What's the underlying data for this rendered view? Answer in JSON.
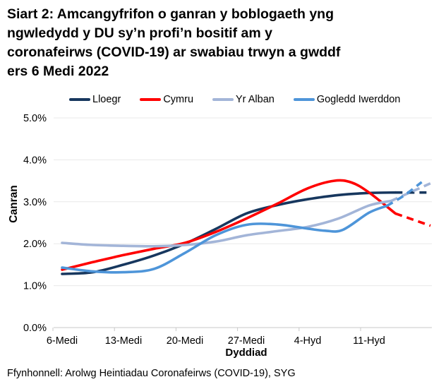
{
  "title_lines": [
    "Siart 2: Amcangyfrifon o ganran y boblogaeth yng",
    "ngwledydd y DU sy’n profi’n bositif am y",
    "coronafeirws (COVID-19) ar swabiau trwyn a gwddf",
    "ers 6 Medi 2022"
  ],
  "footer": {
    "source": "Ffynhonnell: Arolwg Heintiadau Coronafeirws (COVID-19), SYG"
  },
  "chart_data": {
    "type": "line",
    "xlabel": "Dyddiad",
    "ylabel": "Canran",
    "x_tick_labels": [
      "6-Medi",
      "13-Medi",
      "20-Medi",
      "27-Medi",
      "4-Hyd",
      "11-Hyd"
    ],
    "x_tick_days": [
      0,
      7,
      14,
      21,
      28,
      35
    ],
    "y_tick_labels": [
      "0.0%",
      "1.0%",
      "2.0%",
      "3.0%",
      "4.0%",
      "5.0%"
    ],
    "ylim": [
      0,
      5
    ],
    "grid": "horizontal-only",
    "legend_position": "top",
    "colors": {
      "grid": "#E9E9E9",
      "axis": "#C8C8C8"
    },
    "series": [
      {
        "name": "Lloegr",
        "color": "#17375E",
        "dash_from_day": 38,
        "points": [
          [
            0,
            1.28
          ],
          [
            3.5,
            1.32
          ],
          [
            7,
            1.5
          ],
          [
            10.5,
            1.72
          ],
          [
            14,
            2.0
          ],
          [
            17.5,
            2.35
          ],
          [
            21,
            2.72
          ],
          [
            24.5,
            2.92
          ],
          [
            28,
            3.06
          ],
          [
            31.5,
            3.16
          ],
          [
            35,
            3.21
          ],
          [
            38,
            3.22
          ],
          [
            42,
            3.22
          ]
        ]
      },
      {
        "name": "Cymru",
        "color": "#FF0000",
        "dash_from_day": 38,
        "points": [
          [
            0,
            1.38
          ],
          [
            3.5,
            1.56
          ],
          [
            7,
            1.73
          ],
          [
            10.5,
            1.88
          ],
          [
            14,
            2.02
          ],
          [
            17.5,
            2.28
          ],
          [
            21,
            2.6
          ],
          [
            24.5,
            2.95
          ],
          [
            28,
            3.32
          ],
          [
            31,
            3.5
          ],
          [
            33,
            3.46
          ],
          [
            35,
            3.22
          ],
          [
            38,
            2.72
          ],
          [
            42,
            2.43
          ]
        ]
      },
      {
        "name": "Yr Alban",
        "color": "#A3B5D8",
        "dash_from_day": 37.5,
        "points": [
          [
            0,
            2.02
          ],
          [
            3.5,
            1.97
          ],
          [
            7,
            1.95
          ],
          [
            10.5,
            1.94
          ],
          [
            14,
            1.97
          ],
          [
            17.5,
            2.05
          ],
          [
            21,
            2.2
          ],
          [
            24.5,
            2.3
          ],
          [
            28,
            2.4
          ],
          [
            31.5,
            2.6
          ],
          [
            35,
            2.91
          ],
          [
            37.5,
            3.02
          ],
          [
            42,
            3.44
          ]
        ]
      },
      {
        "name": "Gogledd Iwerddon",
        "color": "#4E95D9",
        "dash_from_day": 37,
        "points": [
          [
            0,
            1.43
          ],
          [
            3.5,
            1.34
          ],
          [
            7,
            1.32
          ],
          [
            10.5,
            1.4
          ],
          [
            14,
            1.78
          ],
          [
            17.5,
            2.2
          ],
          [
            21,
            2.45
          ],
          [
            24.5,
            2.46
          ],
          [
            28,
            2.36
          ],
          [
            30,
            2.31
          ],
          [
            32,
            2.33
          ],
          [
            35,
            2.74
          ],
          [
            37,
            2.9
          ],
          [
            39,
            3.15
          ],
          [
            41,
            3.47
          ]
        ]
      }
    ]
  }
}
